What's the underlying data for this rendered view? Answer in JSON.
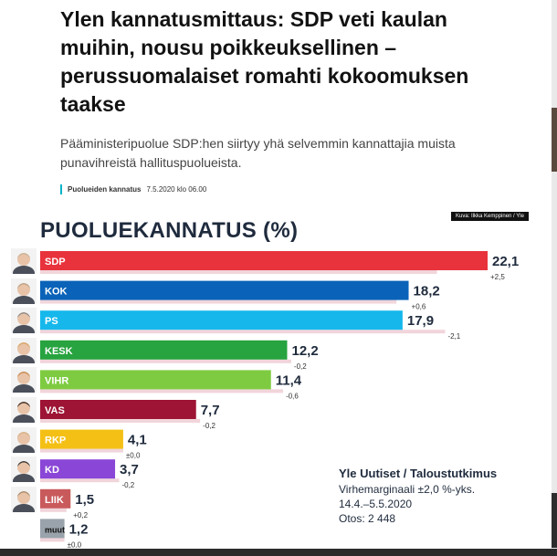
{
  "article": {
    "headline": "Ylen kannatusmittaus: SDP veti kaulan muihin, nousu poikkeuksellinen – perussuomalaiset romahti kokoomuksen taakse",
    "lead": "Pääministeripuolue SDP:hen siirtyy yhä selvemmin kannattajia muista punavihreistä hallituspuolueista.",
    "category": "Puolueiden kannatus",
    "date": "7.5.2020 klo 06.00",
    "photo_credit": "Kuva: Ilkka Kemppinen / Yle"
  },
  "source": {
    "title": "Yle Uutiset / Taloustutkimus",
    "margin": "Virhemarginaali ±2,0 %-yks.",
    "period": "14.4.–5.5.2020",
    "sample": "Otos: 2 448"
  },
  "chart_data": {
    "type": "bar",
    "orientation": "horizontal",
    "title": "PUOLUEKANNATUS (%)",
    "categories": [
      "SDP",
      "KOK",
      "PS",
      "KESK",
      "VIHR",
      "VAS",
      "RKP",
      "KD",
      "LIIK",
      "muut"
    ],
    "values": [
      22.1,
      18.2,
      17.9,
      12.2,
      11.4,
      7.7,
      4.1,
      3.7,
      1.5,
      1.2
    ],
    "value_labels": [
      "22,1",
      "18,2",
      "17,9",
      "12,2",
      "11,4",
      "7,7",
      "4,1",
      "3,7",
      "1,5",
      "1,2"
    ],
    "changes": [
      2.5,
      0.6,
      -2.1,
      -0.2,
      -0.6,
      -0.2,
      0.0,
      -0.2,
      0.2,
      0.0
    ],
    "change_labels": [
      "+2,5",
      "+0,6",
      "-2,1",
      "-0,2",
      "-0,6",
      "-0,2",
      "±0,0",
      "-0,2",
      "+0,2",
      "±0,0"
    ],
    "colors": [
      "#e8333c",
      "#0a63b8",
      "#16b8ec",
      "#27a33f",
      "#7ecb41",
      "#9d1434",
      "#f4c015",
      "#8a46d6",
      "#c95a5c",
      "#9aa3ab"
    ],
    "label_text_colors": [
      "#ffffff",
      "#ffffff",
      "#ffffff",
      "#ffffff",
      "#ffffff",
      "#ffffff",
      "#ffffff",
      "#ffffff",
      "#ffffff",
      "#111111"
    ],
    "previous_bar_color": "#f1d5db",
    "xlim": [
      0,
      22.1
    ],
    "grid": false,
    "legend": "none"
  }
}
